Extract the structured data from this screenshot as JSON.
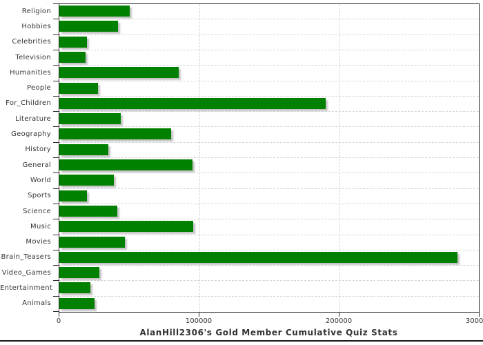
{
  "chart_data": {
    "type": "bar",
    "orientation": "horizontal",
    "title": "AlanHill2306's Gold Member Cumulative Quiz Stats",
    "xlabel": "",
    "ylabel": "",
    "categories": [
      "Religion",
      "Hobbies",
      "Celebrities",
      "Television",
      "Humanities",
      "People",
      "For_Children",
      "Literature",
      "Geography",
      "History",
      "General",
      "World",
      "Sports",
      "Science",
      "Music",
      "Movies",
      "Brain_Teasers",
      "Video_Games",
      "Entertainment",
      "Animals"
    ],
    "values": [
      50000,
      41800,
      19800,
      18500,
      85000,
      27600,
      190000,
      44000,
      80000,
      35200,
      95300,
      39000,
      19800,
      41200,
      95700,
      46900,
      284000,
      28500,
      22300,
      25100
    ],
    "xlim": [
      0,
      300000
    ],
    "x_ticks": [
      0,
      100000,
      200000,
      300000
    ],
    "x_tick_labels": [
      "0",
      "100000",
      "200000",
      "300000"
    ],
    "grid": true,
    "legend": "none"
  },
  "colors": {
    "bar_fill": "#008000",
    "bar_shadow": "#c4c4c4",
    "axis_line": "#2a2a2a",
    "grid_line": "#d4d4d4",
    "text": "#333333",
    "background": "#ffffff"
  }
}
